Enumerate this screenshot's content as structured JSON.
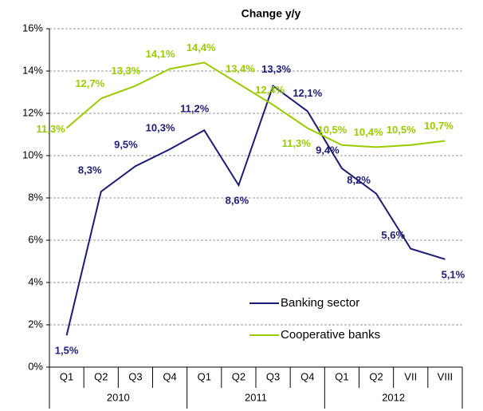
{
  "chart_data": {
    "type": "line",
    "title": "Change y/y",
    "categories": [
      "Q1",
      "Q2",
      "Q3",
      "Q4",
      "Q1",
      "Q2",
      "Q3",
      "Q4",
      "Q1",
      "Q2",
      "VII",
      "VIII"
    ],
    "years": [
      "2010",
      "2011",
      "2012"
    ],
    "series": [
      {
        "name": "Banking sector",
        "color": "#1c1c74",
        "values": [
          1.5,
          8.3,
          9.5,
          10.3,
          11.2,
          8.6,
          13.3,
          12.1,
          9.4,
          8.2,
          5.6,
          5.1
        ],
        "value_labels": [
          "1,5%",
          "8,3%",
          "9,5%",
          "10,3%",
          "11,2%",
          "8,6%",
          "13,3%",
          "12,1%",
          "9,4%",
          "8,2%",
          "5,6%",
          "5,1%"
        ]
      },
      {
        "name": "Cooperative banks",
        "color": "#99cc00",
        "values": [
          11.3,
          12.7,
          13.3,
          14.1,
          14.4,
          13.4,
          12.4,
          11.3,
          10.5,
          10.4,
          10.5,
          10.7
        ],
        "value_labels": [
          "11,3%",
          "12,7%",
          "13,3%",
          "14,1%",
          "14,4%",
          "13,4%",
          "12,4%",
          "11,3%",
          "10,5%",
          "10,4%",
          "10,5%",
          "10,7%"
        ]
      }
    ],
    "ylim": [
      0,
      16
    ],
    "yticks": [
      {
        "value": 0,
        "label": "0%"
      },
      {
        "value": 2,
        "label": "2%"
      },
      {
        "value": 4,
        "label": "4%"
      },
      {
        "value": 6,
        "label": "6%"
      },
      {
        "value": 8,
        "label": "8%"
      },
      {
        "value": 10,
        "label": "10%"
      },
      {
        "value": 12,
        "label": "12%"
      },
      {
        "value": 14,
        "label": "14%"
      },
      {
        "value": 16,
        "label": "16%"
      }
    ],
    "grid": true,
    "legend": "inside"
  }
}
